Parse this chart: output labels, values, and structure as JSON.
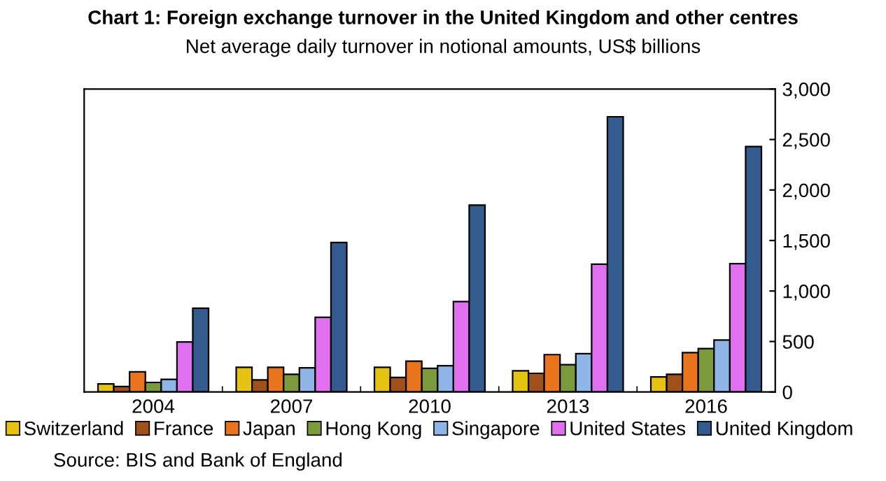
{
  "chart_data": {
    "type": "bar",
    "title": "Chart 1: Foreign exchange turnover in the United Kingdom and other centres",
    "subtitle": "Net average daily turnover in notional amounts, US$ billions",
    "categories": [
      "2004",
      "2007",
      "2010",
      "2013",
      "2016"
    ],
    "series": [
      {
        "name": "Switzerland",
        "color": "#e6c313",
        "values": [
          80,
          245,
          245,
          210,
          150
        ]
      },
      {
        "name": "France",
        "color": "#a0501a",
        "values": [
          55,
          120,
          145,
          185,
          175
        ]
      },
      {
        "name": "Japan",
        "color": "#e8741e",
        "values": [
          200,
          245,
          305,
          370,
          390
        ]
      },
      {
        "name": "Hong Kong",
        "color": "#7a9a3c",
        "values": [
          95,
          175,
          235,
          270,
          430
        ]
      },
      {
        "name": "Singapore",
        "color": "#8fb4e6",
        "values": [
          125,
          240,
          260,
          380,
          515
        ]
      },
      {
        "name": "United States",
        "color": "#e070f0",
        "values": [
          495,
          740,
          895,
          1265,
          1270
        ]
      },
      {
        "name": "United Kingdom",
        "color": "#335b8e",
        "values": [
          830,
          1480,
          1850,
          2725,
          2430
        ]
      }
    ],
    "ylim": [
      0,
      3000
    ],
    "yticks": [
      0,
      {
        "value": 500,
        "label": "500"
      },
      {
        "value": 1000,
        "label": "1,000"
      },
      {
        "value": 1500,
        "label": "1,500"
      },
      {
        "value": 2000,
        "label": "2,000"
      },
      {
        "value": 2500,
        "label": "2,500"
      },
      {
        "value": 3000,
        "label": "3,000"
      }
    ],
    "grid": false,
    "legend": "bottom",
    "annotations": [
      "Source: BIS and Bank of England"
    ]
  }
}
